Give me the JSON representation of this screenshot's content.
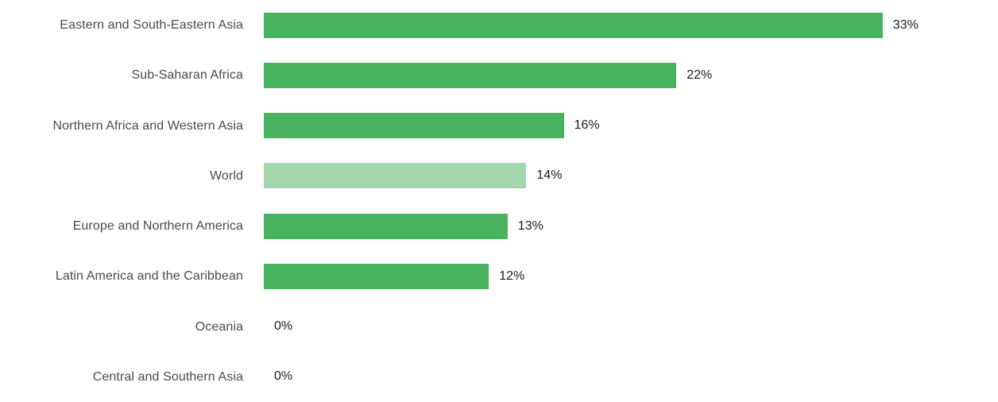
{
  "chart_data": {
    "type": "bar",
    "orientation": "horizontal",
    "title": "",
    "xlabel": "",
    "ylabel": "",
    "grid": false,
    "legend": false,
    "xlim": [
      0,
      39
    ],
    "categories": [
      "Eastern and South-Eastern Asia",
      "Sub-Saharan Africa",
      "Northern Africa and Western Asia",
      "World",
      "Europe and Northern America",
      "Latin America and the Caribbean",
      "Oceania",
      "Central and Southern Asia"
    ],
    "values": [
      33,
      22,
      16,
      14,
      13,
      12,
      0,
      0
    ],
    "value_labels": [
      "33%",
      "22%",
      "16%",
      "14%",
      "13%",
      "12%",
      "0%",
      "0%"
    ],
    "highlight_category": "World",
    "bar_color": "#48B25E",
    "highlight_bar_color": "#A2D6AB"
  },
  "colors": {
    "background": "#FFFFFF",
    "category_label": "#4A4A4A",
    "value_label": "#1A1A1A"
  }
}
